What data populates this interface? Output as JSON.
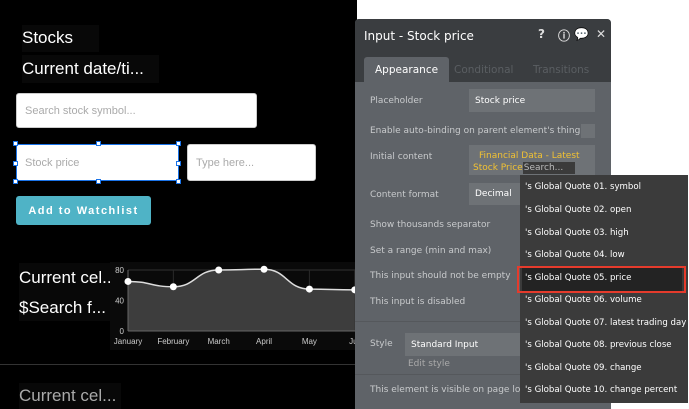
{
  "canvas": {
    "title": "Stocks",
    "date": "Current date/ti...",
    "search_placeholder": "Search stock symbol...",
    "price_placeholder": "Stock price",
    "type_placeholder": "Type here...",
    "add_button": "Add to Watchlist",
    "cell1": "Current cel...",
    "search_f": "$Search f...",
    "cell2": "Current cel..."
  },
  "chart_data": {
    "type": "area",
    "categories": [
      "January",
      "February",
      "March",
      "April",
      "May",
      "June"
    ],
    "tick_labels": [
      "January",
      "February",
      "March",
      "April",
      "May",
      "Jur"
    ],
    "values": [
      65,
      58,
      80,
      81,
      55,
      54
    ],
    "ylim": [
      0,
      80
    ],
    "yticks": [
      "0",
      "40",
      "80"
    ],
    "grid": true
  },
  "panel": {
    "title": "Input - Stock price",
    "icons": [
      "help-icon",
      "info-icon",
      "comment-icon",
      "close-icon"
    ],
    "tabs": [
      "Appearance",
      "Conditional",
      "Transitions"
    ],
    "placeholder_label": "Placeholder",
    "placeholder_value": "Stock price",
    "autobind_label": "Enable auto-binding on parent element's thing",
    "initial_label": "Initial content",
    "initial_line1": "Financial Data - Latest",
    "initial_line2": "Stock Price",
    "search_placeholder": "Search...",
    "format_label": "Content format",
    "format_value": "Decimal",
    "thousands_label": "Show thousands separator",
    "range_label": "Set a range (min and max)",
    "notempty_label": "This input should not be empty",
    "disabled_label": "This input is disabled",
    "style_label": "Style",
    "style_value": "Standard Input",
    "edit_style": "Edit style",
    "visible_label": "This element is visible on page load"
  },
  "dropdown": {
    "options": [
      "'s Global Quote 01. symbol",
      "'s Global Quote 02. open",
      "'s Global Quote 03. high",
      "'s Global Quote 04. low",
      "'s Global Quote 05. price",
      "'s Global Quote 06. volume",
      "'s Global Quote 07. latest trading day",
      "'s Global Quote 08. previous close",
      "'s Global Quote 09. change",
      "'s Global Quote 10. change percent"
    ],
    "selected_index": 4,
    "highlight_color": "#e53b2c"
  }
}
